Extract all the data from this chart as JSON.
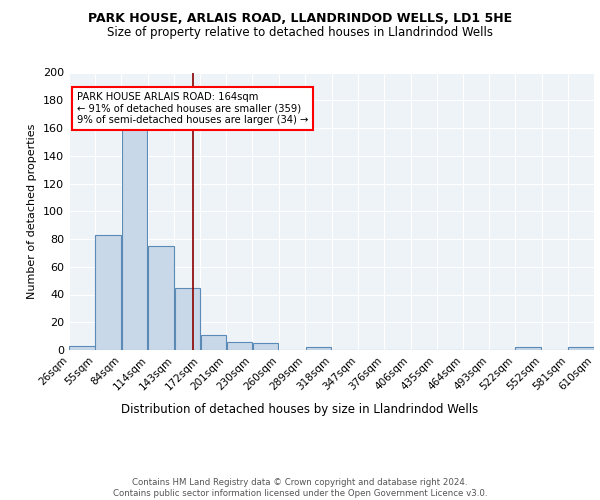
{
  "title1": "PARK HOUSE, ARLAIS ROAD, LLANDRINDOD WELLS, LD1 5HE",
  "title2": "Size of property relative to detached houses in Llandrindod Wells",
  "xlabel": "Distribution of detached houses by size in Llandrindod Wells",
  "ylabel": "Number of detached properties",
  "footer": "Contains HM Land Registry data © Crown copyright and database right 2024.\nContains public sector information licensed under the Open Government Licence v3.0.",
  "bins": [
    26,
    55,
    84,
    114,
    143,
    172,
    201,
    230,
    260,
    289,
    318,
    347,
    376,
    406,
    435,
    464,
    493,
    522,
    552,
    581,
    610
  ],
  "bar_heights": [
    3,
    83,
    162,
    75,
    45,
    11,
    6,
    5,
    0,
    2,
    0,
    0,
    0,
    0,
    0,
    0,
    0,
    2,
    0,
    2
  ],
  "bar_color": "#c8d8e8",
  "bar_edge_color": "#5a8ab5",
  "vline_x": 164,
  "vline_color": "#8b0000",
  "ylim": [
    0,
    200
  ],
  "yticks": [
    0,
    20,
    40,
    60,
    80,
    100,
    120,
    140,
    160,
    180,
    200
  ],
  "annotation_text": "PARK HOUSE ARLAIS ROAD: 164sqm\n← 91% of detached houses are smaller (359)\n9% of semi-detached houses are larger (34) →",
  "annotation_box_color": "white",
  "annotation_box_edge": "red",
  "bg_color": "#eef3f8",
  "grid_color": "white",
  "title1_fontsize": 9,
  "title2_fontsize": 8.5,
  "ylabel_fontsize": 8,
  "xlabel_fontsize": 8.5,
  "tick_fontsize": 7.5,
  "footer_fontsize": 6.2
}
